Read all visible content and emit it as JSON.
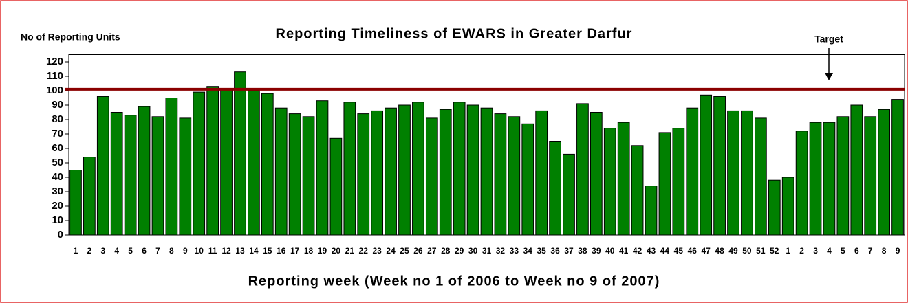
{
  "chart_data": {
    "type": "bar",
    "title": "Reporting Timeliness of EWARS in Greater Darfur",
    "y_axis_label": "No of Reporting Units",
    "x_axis_label": "Reporting week (Week no 1 of 2006 to Week no 9 of 2007)",
    "categories": [
      "1",
      "2",
      "3",
      "4",
      "5",
      "6",
      "7",
      "8",
      "9",
      "10",
      "11",
      "12",
      "13",
      "14",
      "15",
      "16",
      "17",
      "18",
      "19",
      "20",
      "21",
      "22",
      "23",
      "24",
      "25",
      "26",
      "27",
      "28",
      "29",
      "30",
      "31",
      "32",
      "33",
      "34",
      "35",
      "36",
      "37",
      "38",
      "39",
      "40",
      "41",
      "42",
      "43",
      "44",
      "45",
      "46",
      "47",
      "48",
      "49",
      "50",
      "51",
      "52",
      "1",
      "2",
      "3",
      "4",
      "5",
      "6",
      "7",
      "8",
      "9"
    ],
    "values": [
      45,
      54,
      96,
      85,
      83,
      89,
      82,
      95,
      81,
      99,
      103,
      101,
      113,
      100,
      98,
      88,
      84,
      82,
      93,
      67,
      92,
      84,
      86,
      88,
      90,
      92,
      81,
      87,
      92,
      90,
      88,
      84,
      82,
      77,
      86,
      65,
      56,
      91,
      85,
      74,
      78,
      62,
      34,
      71,
      74,
      88,
      97,
      96,
      86,
      86,
      81,
      38,
      40,
      72,
      78,
      78,
      82,
      90,
      82,
      87,
      94
    ],
    "color": "#008000",
    "target": 101,
    "target_label": "Target",
    "target_color": "#8b0000",
    "ylim": [
      0,
      125
    ],
    "yticks": [
      0,
      10,
      20,
      30,
      40,
      50,
      60,
      70,
      80,
      90,
      100,
      110,
      120
    ]
  }
}
